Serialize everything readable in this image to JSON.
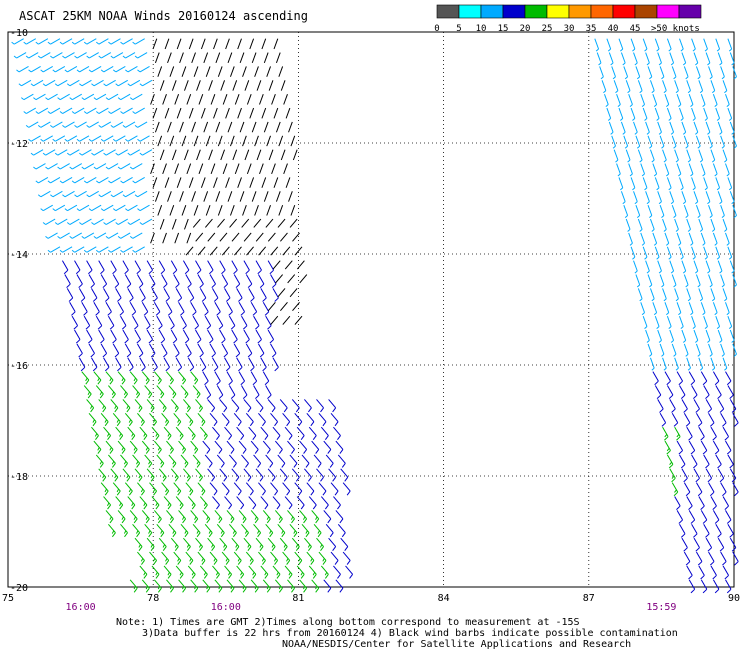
{
  "chart_data": {
    "type": "scatter",
    "title": "ASCAT 25KM NOAA Winds 20160124 ascending",
    "xlabel": "",
    "ylabel": "",
    "xlim": [
      75,
      90
    ],
    "ylim": [
      -20,
      -10
    ],
    "x_ticks": [
      "75",
      "78",
      "81",
      "84",
      "87",
      "90"
    ],
    "y_ticks": [
      "-10",
      "-12",
      "-14",
      "-16",
      "-18",
      "-20"
    ],
    "grid": true,
    "time_labels": [
      {
        "text": "16:00",
        "x": 76.5
      },
      {
        "text": "16:00",
        "x": 79.5
      },
      {
        "text": "15:59",
        "x": 88.5
      }
    ],
    "time_color": "#800080",
    "legend": {
      "ticks": [
        "0",
        "5",
        "10",
        "15",
        "20",
        "25",
        "30",
        "35",
        "40",
        "45",
        ">50 knots"
      ],
      "colors": [
        "#555555",
        "#00ffff",
        "#00aaff",
        "#0000cc",
        "#00bb00",
        "#ffff00",
        "#ff9900",
        "#ff6600",
        "#ff0000",
        "#aa4400",
        "#ff00ff",
        "#6600aa"
      ],
      "placement": "top-right"
    },
    "notes": [
      "Note: 1) Times are GMT 2)Times along bottom correspond to measurement at -15S",
      "3)Data buffer is 22 hrs from 20160124 4) Black wind barbs indicate possible contamination",
      "NOAA/NESDIS/Center for Satellite Applications and Research"
    ],
    "swaths": [
      {
        "name": "west",
        "lon_edges_top": [
          75.2,
          80.8
        ],
        "lon_edges_bottom": [
          77.2,
          82.2
        ],
        "lat_range": [
          -20,
          -10
        ],
        "regions": [
          {
            "lat_range": [
              -13.8,
              -10
            ],
            "lon_range": [
              78.0,
              81.0
            ],
            "speed_kt": 2,
            "dir_deg": 200,
            "contaminated": true
          },
          {
            "lat_range": [
              -15.2,
              -13.2
            ],
            "lon_range": [
              78.8,
              81.2
            ],
            "speed_kt": 2,
            "dir_deg": 220,
            "contaminated": true
          },
          {
            "lat_range": [
              -14.5,
              -10
            ],
            "lon_range": [
              75.2,
              78.0
            ],
            "speed_kt": 5,
            "dir_deg": 240,
            "contaminated": false
          },
          {
            "lat_range": [
              -16.5,
              -14.0
            ],
            "lon_range": [
              75.5,
              80.5
            ],
            "speed_kt": 10,
            "dir_deg": 150,
            "contaminated": false
          },
          {
            "lat_range": [
              -19.0,
              -16.0
            ],
            "lon_range": [
              76.0,
              79.0
            ],
            "speed_kt": 17,
            "dir_deg": 140,
            "contaminated": false
          },
          {
            "lat_range": [
              -20.0,
              -16.5
            ],
            "lon_range": [
              79.0,
              82.0
            ],
            "speed_kt": 13,
            "dir_deg": 140,
            "contaminated": false
          },
          {
            "lat_range": [
              -20.0,
              -18.5
            ],
            "lon_range": [
              77.5,
              81.5
            ],
            "speed_kt": 19,
            "dir_deg": 140,
            "contaminated": false
          }
        ]
      },
      {
        "name": "east",
        "lon_edges_top": [
          87.0,
          90.0
        ],
        "lon_edges_bottom": [
          89.0,
          90.0
        ],
        "lat_range": [
          -20,
          -10
        ],
        "regions": [
          {
            "lat_range": [
              -16.0,
              -10
            ],
            "lon_range": [
              87.0,
              90.0
            ],
            "speed_kt": 8,
            "dir_deg": 160,
            "contaminated": false
          },
          {
            "lat_range": [
              -20.0,
              -16.0
            ],
            "lon_range": [
              88.0,
              90.0
            ],
            "speed_kt": 13,
            "dir_deg": 150,
            "contaminated": false
          },
          {
            "lat_range": [
              -18.2,
              -17.0
            ],
            "lon_range": [
              88.0,
              88.8
            ],
            "speed_kt": 17,
            "dir_deg": 150,
            "contaminated": false
          }
        ]
      }
    ]
  }
}
